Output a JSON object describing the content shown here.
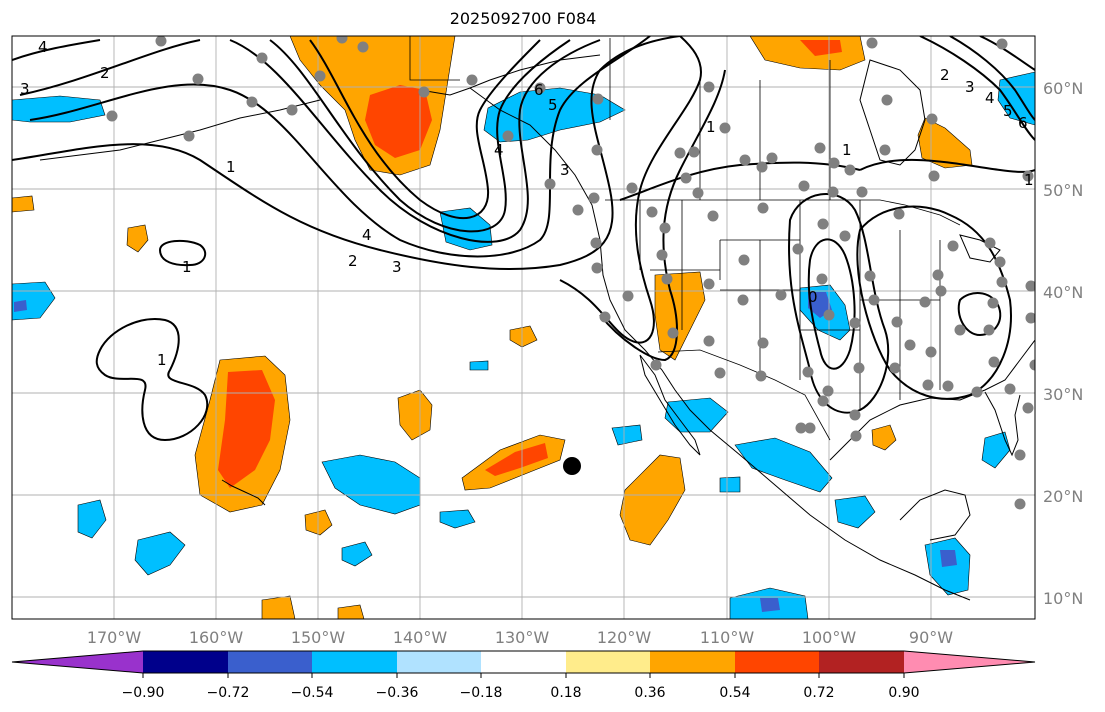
{
  "title": "2025092700 F084",
  "axes": {
    "lon_labels": [
      "170°W",
      "160°W",
      "150°W",
      "140°W",
      "130°W",
      "120°W",
      "110°W",
      "100°W",
      "90°W"
    ],
    "lat_labels": [
      "60°N",
      "50°N",
      "40°N",
      "30°N",
      "20°N",
      "10°N"
    ]
  },
  "colorbar": {
    "ticks": [
      "−0.90",
      "−0.72",
      "−0.54",
      "−0.36",
      "−0.18",
      "0.18",
      "0.36",
      "0.54",
      "0.72",
      "0.90"
    ],
    "colors": [
      "#9932cc",
      "#00008b",
      "#3a5fcd",
      "#00bfff",
      "#b0e2ff",
      "#ffffff",
      "#ffec8b",
      "#ffa500",
      "#ff4500",
      "#b22222",
      "#ff8cb1"
    ]
  },
  "contour_labels": [
    "4",
    "2",
    "3",
    "1",
    "1",
    "6",
    "5",
    "4",
    "3",
    "1",
    "4",
    "2",
    "3",
    "1",
    "1",
    "2",
    "3",
    "4",
    "5",
    "6",
    "0",
    "1"
  ],
  "legend_colors": {
    "contour": "#000000",
    "station_dot": "#808080",
    "marker": "#000000",
    "grid": "#b0b0b0",
    "coast": "#000000"
  }
}
